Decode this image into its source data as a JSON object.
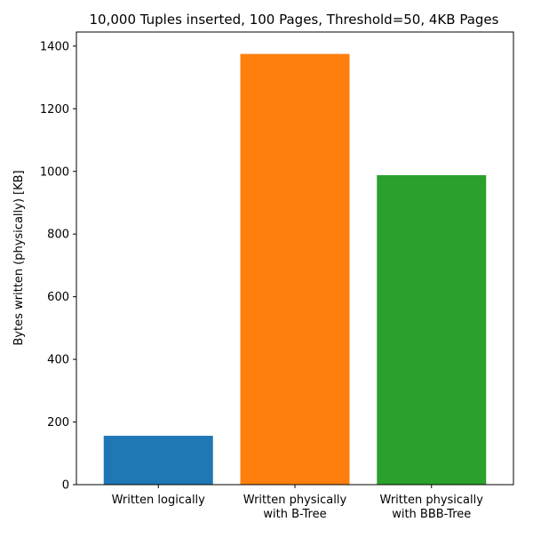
{
  "chart_data": {
    "type": "bar",
    "title": "10,000 Tuples inserted, 100 Pages, Threshold=50, 4KB Pages",
    "xlabel": "",
    "ylabel": "Bytes written (physically) [KB]",
    "categories": [
      [
        "Written logically"
      ],
      [
        "Written physically",
        "with B-Tree"
      ],
      [
        "Written physically",
        "with BBB-Tree"
      ]
    ],
    "values": [
      156,
      1375,
      988
    ],
    "colors": [
      "#1f77b4",
      "#ff7f0e",
      "#2ca02c"
    ],
    "ylim": [
      0,
      1445
    ],
    "yticks": [
      0,
      200,
      400,
      600,
      800,
      1000,
      1200,
      1400
    ],
    "grid": false
  }
}
